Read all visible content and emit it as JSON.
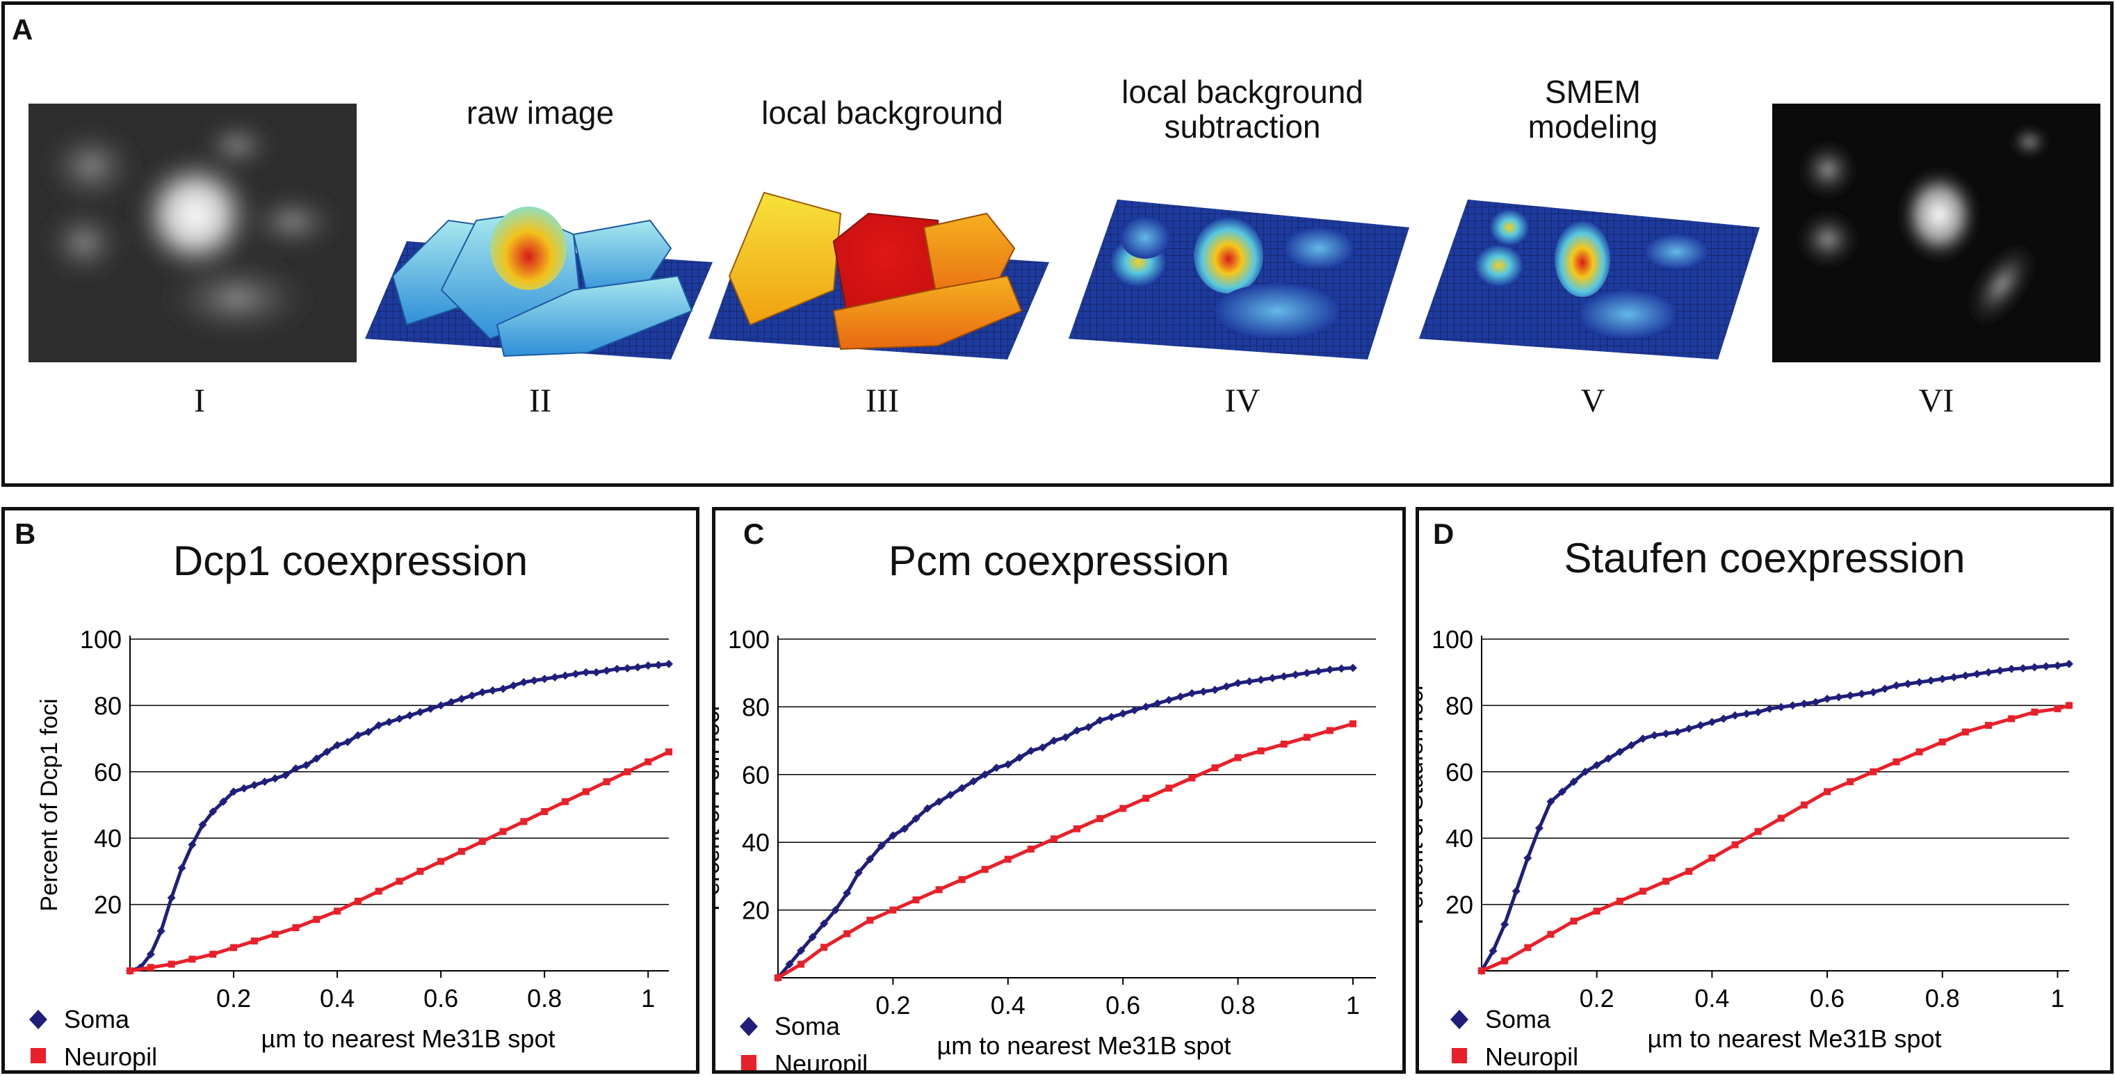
{
  "panel_a": {
    "letter": "A",
    "stages": [
      {
        "roman": "I",
        "title": ""
      },
      {
        "roman": "II",
        "title": "raw image"
      },
      {
        "roman": "III",
        "title": "local background"
      },
      {
        "roman": "IV",
        "title": "local background subtraction"
      },
      {
        "roman": "V",
        "title": "SMEM modeling"
      },
      {
        "roman": "VI",
        "title": ""
      }
    ]
  },
  "colors": {
    "soma": "#1f1f7a",
    "neuropil": "#e8202a",
    "grid": "#000000"
  },
  "legend": {
    "soma": "Soma",
    "neuropil": "Neuropil"
  },
  "chart_data": [
    {
      "letter": "B",
      "type": "line",
      "title": "Dcp1 coexpression",
      "xlabel": "µm to nearest Me31B spot",
      "ylabel": "Percent of Dcp1 foci",
      "xlim": [
        0,
        1.04
      ],
      "ylim": [
        0,
        100
      ],
      "xticks": [
        "0.2",
        "0.4",
        "0.6",
        "0.8",
        "1"
      ],
      "yticks": [
        "20",
        "40",
        "60",
        "80",
        "100"
      ],
      "series": [
        {
          "name": "Soma",
          "x": [
            0,
            0.02,
            0.04,
            0.06,
            0.08,
            0.1,
            0.12,
            0.14,
            0.16,
            0.18,
            0.2,
            0.22,
            0.24,
            0.26,
            0.28,
            0.3,
            0.32,
            0.34,
            0.36,
            0.38,
            0.4,
            0.42,
            0.44,
            0.46,
            0.48,
            0.5,
            0.52,
            0.54,
            0.56,
            0.58,
            0.6,
            0.62,
            0.64,
            0.66,
            0.68,
            0.7,
            0.72,
            0.74,
            0.76,
            0.78,
            0.8,
            0.82,
            0.84,
            0.86,
            0.88,
            0.9,
            0.92,
            0.94,
            0.96,
            0.98,
            1.0,
            1.02,
            1.04
          ],
          "y": [
            0,
            1,
            5,
            12,
            22,
            31,
            38,
            44,
            48,
            51,
            54,
            55,
            56,
            57,
            58,
            59,
            61,
            62,
            64,
            66,
            68,
            69,
            71,
            72,
            74,
            75,
            76,
            77,
            78,
            79,
            80,
            81,
            82,
            83,
            84,
            84.5,
            85,
            86,
            87,
            87.5,
            88,
            88.5,
            89,
            89.5,
            90,
            90,
            90.5,
            91,
            91.2,
            91.5,
            92,
            92.2,
            92.5
          ]
        },
        {
          "name": "Neuropil",
          "x": [
            0,
            0.04,
            0.08,
            0.12,
            0.16,
            0.2,
            0.24,
            0.28,
            0.32,
            0.36,
            0.4,
            0.44,
            0.48,
            0.52,
            0.56,
            0.6,
            0.64,
            0.68,
            0.72,
            0.76,
            0.8,
            0.84,
            0.88,
            0.92,
            0.96,
            1.0,
            1.04
          ],
          "y": [
            0,
            1,
            2,
            3.5,
            5,
            7,
            9,
            11,
            13,
            15.5,
            18,
            21,
            24,
            27,
            30,
            33,
            36,
            39,
            42,
            45,
            48,
            51,
            54,
            57,
            60,
            63,
            66
          ]
        }
      ]
    },
    {
      "letter": "C",
      "type": "line",
      "title": "Pcm coexpression",
      "xlabel": "µm to nearest Me31B spot",
      "ylabel": "Percent of Pcm foci",
      "xlim": [
        0,
        1.04
      ],
      "ylim": [
        0,
        100
      ],
      "xticks": [
        "0.2",
        "0.4",
        "0.6",
        "0.8",
        "1"
      ],
      "yticks": [
        "20",
        "40",
        "60",
        "80",
        "100"
      ],
      "series": [
        {
          "name": "Soma",
          "x": [
            0,
            0.02,
            0.04,
            0.06,
            0.08,
            0.1,
            0.12,
            0.14,
            0.16,
            0.18,
            0.2,
            0.22,
            0.24,
            0.26,
            0.28,
            0.3,
            0.32,
            0.34,
            0.36,
            0.38,
            0.4,
            0.42,
            0.44,
            0.46,
            0.48,
            0.5,
            0.52,
            0.54,
            0.56,
            0.58,
            0.6,
            0.62,
            0.64,
            0.66,
            0.68,
            0.7,
            0.72,
            0.74,
            0.76,
            0.78,
            0.8,
            0.82,
            0.84,
            0.86,
            0.88,
            0.9,
            0.92,
            0.94,
            0.96,
            0.98,
            1.0
          ],
          "y": [
            0,
            4,
            8,
            12,
            16,
            20,
            25,
            31,
            35,
            39,
            42,
            44,
            47,
            50,
            52,
            54,
            56,
            58,
            60,
            62,
            63,
            65,
            67,
            68,
            70,
            71,
            73,
            74,
            76,
            77,
            78,
            79,
            80,
            81,
            82,
            83,
            84,
            84.5,
            85,
            86,
            87,
            87.5,
            88,
            88.5,
            89,
            89.5,
            90,
            90.5,
            91,
            91.3,
            91.5
          ]
        },
        {
          "name": "Neuropil",
          "x": [
            0,
            0.04,
            0.08,
            0.12,
            0.16,
            0.2,
            0.24,
            0.28,
            0.32,
            0.36,
            0.4,
            0.44,
            0.48,
            0.52,
            0.56,
            0.6,
            0.64,
            0.68,
            0.72,
            0.76,
            0.8,
            0.84,
            0.88,
            0.92,
            0.96,
            1.0
          ],
          "y": [
            0,
            4,
            9,
            13,
            17,
            20,
            23,
            26,
            29,
            32,
            35,
            38,
            41,
            44,
            47,
            50,
            53,
            56,
            59,
            62,
            65,
            67,
            69,
            71,
            73,
            75
          ]
        }
      ]
    },
    {
      "letter": "D",
      "type": "line",
      "title": "Staufen coexpression",
      "xlabel": "µm to nearest Me31B spot",
      "ylabel": "Percent of Staufen foci",
      "xlim": [
        0,
        1.02
      ],
      "ylim": [
        0,
        100
      ],
      "xticks": [
        "0.2",
        "0.4",
        "0.6",
        "0.8",
        "1"
      ],
      "yticks": [
        "20",
        "40",
        "60",
        "80",
        "100"
      ],
      "series": [
        {
          "name": "Soma",
          "x": [
            0,
            0.02,
            0.04,
            0.06,
            0.08,
            0.1,
            0.12,
            0.14,
            0.16,
            0.18,
            0.2,
            0.22,
            0.24,
            0.26,
            0.28,
            0.3,
            0.32,
            0.34,
            0.36,
            0.38,
            0.4,
            0.42,
            0.44,
            0.46,
            0.48,
            0.5,
            0.52,
            0.54,
            0.56,
            0.58,
            0.6,
            0.62,
            0.64,
            0.66,
            0.68,
            0.7,
            0.72,
            0.74,
            0.76,
            0.78,
            0.8,
            0.82,
            0.84,
            0.86,
            0.88,
            0.9,
            0.92,
            0.94,
            0.96,
            0.98,
            1.0,
            1.02
          ],
          "y": [
            0,
            6,
            14,
            24,
            34,
            43,
            51,
            54,
            57,
            60,
            62,
            64,
            66,
            68,
            70,
            71,
            71.5,
            72,
            73,
            74,
            75,
            76,
            77,
            77.5,
            78,
            79,
            79.5,
            80,
            80.5,
            81,
            82,
            82.5,
            83,
            83.5,
            84,
            85,
            86,
            86.5,
            87,
            87.5,
            88,
            88.5,
            89,
            89.5,
            90,
            90.5,
            91,
            91.2,
            91.5,
            91.8,
            92,
            92.5
          ]
        },
        {
          "name": "Neuropil",
          "x": [
            0,
            0.04,
            0.08,
            0.12,
            0.16,
            0.2,
            0.24,
            0.28,
            0.32,
            0.36,
            0.4,
            0.44,
            0.48,
            0.52,
            0.56,
            0.6,
            0.64,
            0.68,
            0.72,
            0.76,
            0.8,
            0.84,
            0.88,
            0.92,
            0.96,
            1.0,
            1.02
          ],
          "y": [
            0,
            3,
            7,
            11,
            15,
            18,
            21,
            24,
            27,
            30,
            34,
            38,
            42,
            46,
            50,
            54,
            57,
            60,
            63,
            66,
            69,
            72,
            74,
            76,
            78,
            79,
            80
          ]
        }
      ]
    }
  ]
}
